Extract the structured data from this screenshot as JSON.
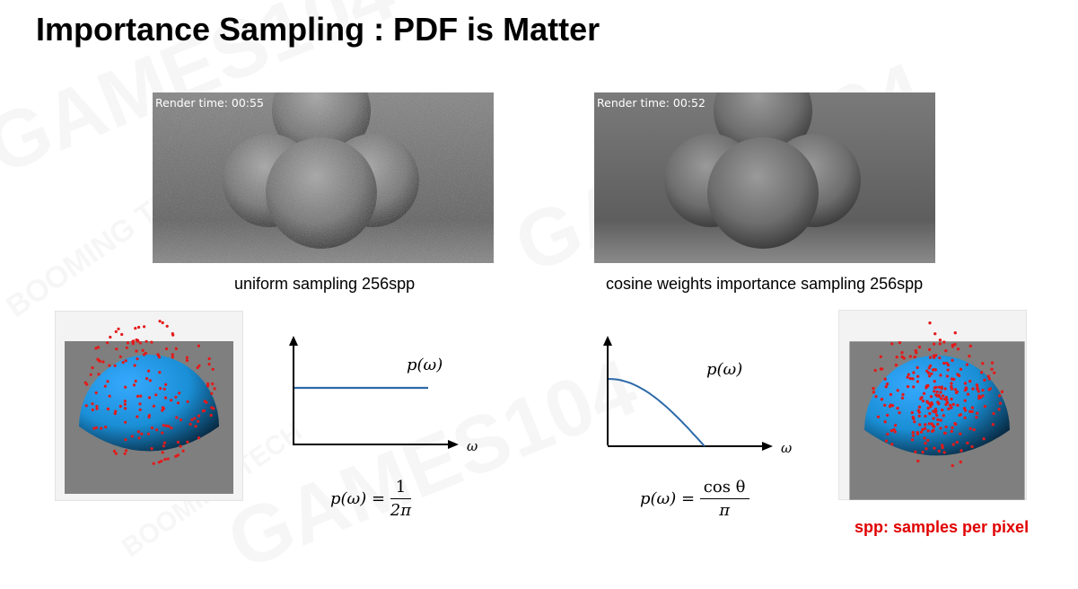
{
  "title": "Importance Sampling : PDF is Matter",
  "watermarks": [
    "GAMES104",
    "GAMES104",
    "GAMES104",
    "BOOMING TECH",
    "BOOMING TECH"
  ],
  "renders": [
    {
      "time_label": "Render time: 00:55",
      "caption": "uniform sampling 256spp",
      "noise": "high"
    },
    {
      "time_label": "Render time: 00:52",
      "caption": "cosine weights importance sampling 256spp",
      "noise": "low"
    }
  ],
  "plots": [
    {
      "pdf_label": "p(ω)",
      "axis_label": "ω",
      "formula": {
        "lhs": "p(ω) =",
        "numerator": "1",
        "denominator": "2π"
      },
      "curve": "constant",
      "color": "#2e6aa8"
    },
    {
      "pdf_label": "p(ω)",
      "axis_label": "ω",
      "formula": {
        "lhs": "p(ω) =",
        "numerator": "cos θ",
        "denominator": "π"
      },
      "curve": "cosine",
      "color": "#2e6aa8"
    }
  ],
  "hemispheres": [
    {
      "distribution": "uniform",
      "sphere_color": "#1a8fd6",
      "dot_color": "#e31a1a"
    },
    {
      "distribution": "cosine",
      "sphere_color": "#1a8fd6",
      "dot_color": "#e31a1a"
    }
  ],
  "footnote": "spp: samples per pixel"
}
